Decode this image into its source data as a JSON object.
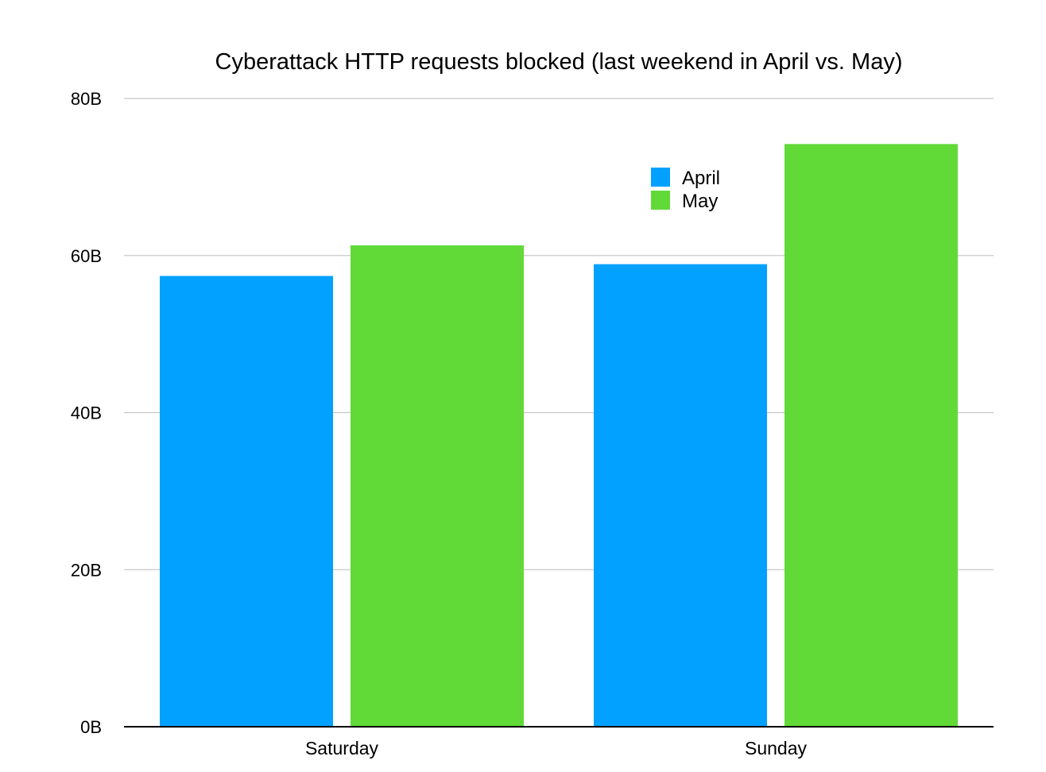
{
  "chart_data": {
    "type": "bar",
    "title": "Cyberattack HTTP requests blocked (last weekend in April vs. May)",
    "xlabel": "",
    "ylabel": "",
    "categories": [
      "Saturday",
      "Sunday"
    ],
    "series": [
      {
        "name": "April",
        "color": "#03a1ff",
        "values": [
          57.4,
          58.9
        ]
      },
      {
        "name": "May",
        "color": "#61da38",
        "values": [
          61.3,
          74.2
        ]
      }
    ],
    "ylim": [
      0,
      80
    ],
    "yticks": [
      0,
      20,
      40,
      60,
      80
    ],
    "ytick_labels": [
      "0B",
      "20B",
      "40B",
      "60B",
      "80B"
    ],
    "grid": true,
    "legend_position": "upper-right-inside"
  }
}
